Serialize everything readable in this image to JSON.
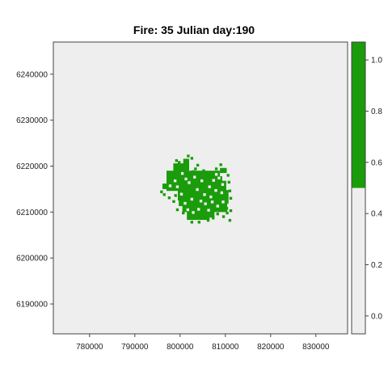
{
  "chart_data": {
    "type": "heatmap",
    "title": "Fire: 35   Julian day:190",
    "xlabel": "",
    "ylabel": "",
    "xlim": [
      772000,
      837000
    ],
    "ylim": [
      6183500,
      6247000
    ],
    "x_ticks": [
      780000,
      790000,
      800000,
      810000,
      820000,
      830000
    ],
    "x_tick_labels": [
      "780000",
      "790000",
      "800000",
      "810000",
      "820000",
      "830000"
    ],
    "y_ticks": [
      6190000,
      6200000,
      6210000,
      6220000,
      6230000,
      6240000
    ],
    "y_tick_labels": [
      "6190000",
      "6200000",
      "6210000",
      "6220000",
      "6230000",
      "6240000"
    ],
    "grid": false,
    "legend": "colorbar-right",
    "colorbar": {
      "range": [
        -0.07,
        1.07
      ],
      "ticks": [
        0.0,
        0.2,
        0.4,
        0.6,
        0.8,
        1.0
      ],
      "tick_labels": [
        "0.0",
        "0.2",
        "0.4",
        "0.6",
        "0.8",
        "1.0"
      ],
      "levels": [
        {
          "from": -0.07,
          "to": 0.5,
          "color": "#eeeeee"
        },
        {
          "from": 0.5,
          "to": 1.07,
          "color": "#1a9c0b"
        }
      ]
    },
    "background_value": 0,
    "background_color": "#eeeeee",
    "burned_color": "#1a9c0b",
    "cell_size_m": 600,
    "burned_core_rect": {
      "x": [
        801000,
        809300
      ],
      "y": [
        6210300,
        6217800
      ]
    },
    "burned_rects": [
      {
        "x": [
          797000,
          808800
        ],
        "y": [
          6214600,
          6219000
        ]
      },
      {
        "x": [
          799500,
          810200
        ],
        "y": [
          6212500,
          6216800
        ]
      },
      {
        "x": [
          800500,
          810400
        ],
        "y": [
          6210000,
          6212600
        ]
      },
      {
        "x": [
          801500,
          806500
        ],
        "y": [
          6208300,
          6210600
        ]
      },
      {
        "x": [
          798500,
          801500
        ],
        "y": [
          6216500,
          6220600
        ]
      },
      {
        "x": [
          800700,
          802000
        ],
        "y": [
          6219000,
          6221600
        ]
      },
      {
        "x": [
          796100,
          798700
        ],
        "y": [
          6215000,
          6216200
        ]
      },
      {
        "x": [
          799700,
          801600
        ],
        "y": [
          6211300,
          6214700
        ]
      },
      {
        "x": [
          808600,
          810700
        ],
        "y": [
          6211800,
          6214800
        ]
      },
      {
        "x": [
          808800,
          810300
        ],
        "y": [
          6218500,
          6219600
        ]
      },
      {
        "x": [
          805600,
          807600
        ],
        "y": [
          6208800,
          6210100
        ]
      }
    ],
    "burned_cells": [
      [
        802600,
        6221700
      ],
      [
        801800,
        6222200
      ],
      [
        799200,
        6221200
      ],
      [
        799800,
        6220800
      ],
      [
        803400,
        6219400
      ],
      [
        805200,
        6219000
      ],
      [
        806000,
        6218600
      ],
      [
        809000,
        6220300
      ],
      [
        810600,
        6218000
      ],
      [
        810800,
        6216500
      ],
      [
        811000,
        6214600
      ],
      [
        811200,
        6213000
      ],
      [
        809800,
        6211500
      ],
      [
        810300,
        6210800
      ],
      [
        808300,
        6209600
      ],
      [
        806200,
        6208200
      ],
      [
        804200,
        6207800
      ],
      [
        802600,
        6207800
      ],
      [
        800700,
        6209800
      ],
      [
        799400,
        6210500
      ],
      [
        798600,
        6212300
      ],
      [
        796500,
        6213800
      ],
      [
        795900,
        6214400
      ],
      [
        797300,
        6217400
      ],
      [
        798000,
        6218200
      ],
      [
        807300,
        6208700
      ],
      [
        809600,
        6209000
      ],
      [
        810400,
        6209800
      ],
      [
        811200,
        6210300
      ],
      [
        811000,
        6208200
      ],
      [
        808800,
        6216600
      ],
      [
        807800,
        6217600
      ],
      [
        806600,
        6217900
      ],
      [
        804400,
        6218400
      ],
      [
        802900,
        6218800
      ],
      [
        797600,
        6213100
      ],
      [
        799000,
        6213600
      ],
      [
        800200,
        6218800
      ],
      [
        803900,
        6220200
      ],
      [
        808000,
        6219400
      ]
    ],
    "holes": [
      [
        800500,
        6218400
      ],
      [
        801300,
        6217200
      ],
      [
        802000,
        6216400
      ],
      [
        799400,
        6215500
      ],
      [
        804800,
        6216800
      ],
      [
        806500,
        6215500
      ],
      [
        807400,
        6216900
      ],
      [
        807900,
        6214700
      ],
      [
        808600,
        6217400
      ],
      [
        809400,
        6216000
      ],
      [
        805400,
        6213800
      ],
      [
        803800,
        6214900
      ],
      [
        802600,
        6212800
      ],
      [
        801100,
        6211900
      ],
      [
        807100,
        6212200
      ],
      [
        808300,
        6211300
      ],
      [
        809500,
        6212200
      ],
      [
        806300,
        6210400
      ],
      [
        804100,
        6210600
      ],
      [
        802900,
        6209900
      ],
      [
        801700,
        6210500
      ],
      [
        800300,
        6213900
      ],
      [
        797800,
        6215700
      ],
      [
        798900,
        6216800
      ],
      [
        803200,
        6217600
      ],
      [
        805600,
        6211800
      ],
      [
        806800,
        6213300
      ],
      [
        804600,
        6212400
      ],
      [
        809200,
        6214200
      ],
      [
        808000,
        6218200
      ]
    ]
  }
}
